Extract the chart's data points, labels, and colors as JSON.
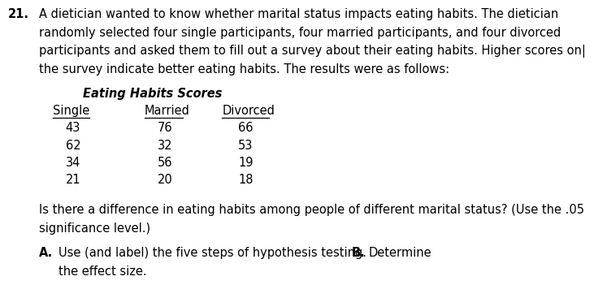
{
  "question_number": "21.",
  "para_line1": "A dietician wanted to know whether marital status impacts eating habits. The dietician",
  "para_line2": "randomly selected four single participants, four married participants, and four divorced",
  "para_line3": "participants and asked them to fill out a survey about their eating habits. Higher scores on|",
  "para_line4": "the survey indicate better eating habits. The results were as follows:",
  "table_title": "Eating Habits Scores",
  "col_headers": [
    "Single",
    "Married",
    "Divorced"
  ],
  "data_rows": [
    [
      "43",
      "76",
      "66"
    ],
    [
      "62",
      "32",
      "53"
    ],
    [
      "34",
      "56",
      "19"
    ],
    [
      "21",
      "20",
      "18"
    ]
  ],
  "question_text_1": "Is there a difference in eating habits among people of different marital status? (Use the .05",
  "question_text_2": "significance level.)",
  "part_a_label": "A.",
  "part_a_text": "Use (and label) the five steps of hypothesis testing.",
  "part_b_label": "B.",
  "part_b_text": "Determine",
  "part_a2": "the effect size.",
  "bg_color": "#ffffff",
  "text_color": "#000000",
  "font_size": 10.5
}
